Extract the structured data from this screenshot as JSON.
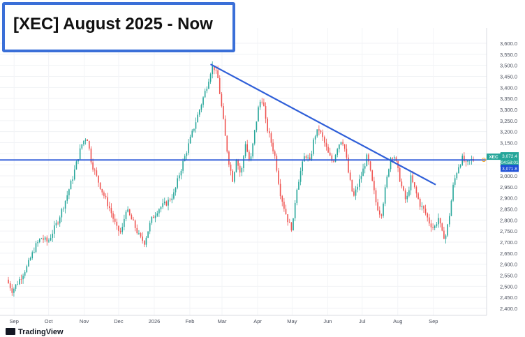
{
  "header": {
    "title": "[XEC] August 2025 - Now"
  },
  "branding": {
    "logo_text": "TradingView"
  },
  "chart_data": {
    "type": "candlestick",
    "title": "[XEC] August 2025 - Now",
    "symbol": "XEC",
    "x_labels": [
      "Sep",
      "Oct",
      "Nov",
      "Dec",
      "2026",
      "Feb",
      "Mar",
      "Apr",
      "May",
      "Jun",
      "Jul",
      "Aug",
      "Sep"
    ],
    "y_ticks": [
      "2,400.0",
      "2,450.0",
      "2,500.0",
      "2,550.0",
      "2,600.0",
      "2,650.0",
      "2,700.0",
      "2,750.0",
      "2,800.0",
      "2,850.0",
      "2,900.0",
      "2,950.0",
      "3,000.0",
      "3,050.0",
      "3,100.0",
      "3,150.0",
      "3,200.0",
      "3,250.0",
      "3,300.0",
      "3,350.0",
      "3,400.0",
      "3,450.0",
      "3,500.0",
      "3,550.0",
      "3,600.0"
    ],
    "ylim": [
      2380,
      3640
    ],
    "grid": true,
    "price_labels": {
      "symbol_tag": "XEC",
      "last_price": "3,072.4",
      "countdown": "04:58:01",
      "line_price": "3,071.8"
    },
    "horizontal_line": {
      "price": 3071.8,
      "color": "#1e4fd6"
    },
    "trendlines": [
      {
        "from": [
          "Jan 27 2026",
          3505
        ],
        "to": [
          "Aug 1 2026",
          2960
        ],
        "color": "#2f5fd8"
      }
    ],
    "colors": {
      "up": "#26a69a",
      "down": "#ef5350",
      "line": "#2f5fd8"
    },
    "path_points": [
      [
        0,
        2530
      ],
      [
        5,
        2480
      ],
      [
        10,
        2520
      ],
      [
        18,
        2590
      ],
      [
        25,
        2680
      ],
      [
        30,
        2720
      ],
      [
        36,
        2700
      ],
      [
        45,
        2800
      ],
      [
        52,
        2900
      ],
      [
        58,
        3000
      ],
      [
        62,
        3080
      ],
      [
        66,
        3150
      ],
      [
        70,
        3180
      ],
      [
        74,
        3060
      ],
      [
        78,
        3000
      ],
      [
        84,
        2920
      ],
      [
        90,
        2850
      ],
      [
        96,
        2760
      ],
      [
        100,
        2740
      ],
      [
        104,
        2850
      ],
      [
        110,
        2790
      ],
      [
        116,
        2720
      ],
      [
        120,
        2700
      ],
      [
        126,
        2800
      ],
      [
        132,
        2850
      ],
      [
        140,
        2880
      ],
      [
        146,
        2920
      ],
      [
        150,
        3000
      ],
      [
        156,
        3100
      ],
      [
        162,
        3200
      ],
      [
        168,
        3300
      ],
      [
        174,
        3400
      ],
      [
        178,
        3480
      ],
      [
        180,
        3500
      ],
      [
        184,
        3440
      ],
      [
        188,
        3280
      ],
      [
        191,
        3150
      ],
      [
        194,
        3050
      ],
      [
        197,
        2980
      ],
      [
        200,
        3080
      ],
      [
        204,
        3000
      ],
      [
        208,
        3150
      ],
      [
        212,
        3050
      ],
      [
        216,
        3200
      ],
      [
        220,
        3330
      ],
      [
        223,
        3350
      ],
      [
        226,
        3230
      ],
      [
        230,
        3160
      ],
      [
        234,
        3080
      ],
      [
        238,
        2930
      ],
      [
        242,
        2850
      ],
      [
        246,
        2780
      ],
      [
        249,
        2760
      ],
      [
        252,
        2930
      ],
      [
        256,
        3020
      ],
      [
        260,
        3100
      ],
      [
        264,
        3060
      ],
      [
        268,
        3180
      ],
      [
        272,
        3210
      ],
      [
        276,
        3160
      ],
      [
        280,
        3100
      ],
      [
        284,
        3060
      ],
      [
        288,
        3130
      ],
      [
        292,
        3170
      ],
      [
        295,
        3110
      ],
      [
        298,
        3000
      ],
      [
        302,
        2900
      ],
      [
        306,
        2960
      ],
      [
        310,
        3020
      ],
      [
        314,
        3090
      ],
      [
        318,
        2980
      ],
      [
        322,
        2870
      ],
      [
        326,
        2820
      ],
      [
        330,
        2950
      ],
      [
        334,
        3080
      ],
      [
        337,
        3100
      ],
      [
        340,
        3040
      ],
      [
        344,
        2950
      ],
      [
        348,
        2880
      ],
      [
        352,
        2990
      ],
      [
        356,
        2930
      ],
      [
        360,
        2870
      ],
      [
        364,
        2840
      ],
      [
        368,
        2790
      ],
      [
        372,
        2760
      ],
      [
        376,
        2810
      ],
      [
        379,
        2740
      ],
      [
        382,
        2720
      ],
      [
        385,
        2800
      ],
      [
        389,
        2960
      ],
      [
        393,
        3040
      ],
      [
        397,
        3080
      ],
      [
        400,
        3050
      ],
      [
        404,
        3070
      ],
      [
        406,
        3072
      ]
    ],
    "ohlc_overrides": []
  }
}
